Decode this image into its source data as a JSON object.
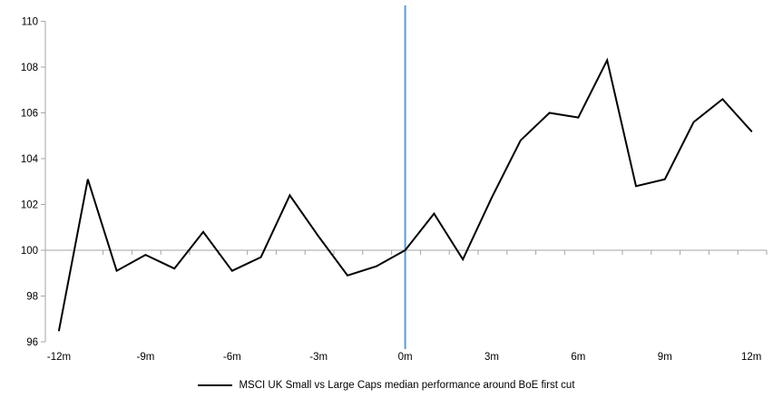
{
  "chart_data": {
    "type": "line",
    "title": "",
    "xlabel": "",
    "ylabel": "",
    "x_months": [
      -12,
      -11,
      -10,
      -9,
      -8,
      -7,
      -6,
      -5,
      -4,
      -3,
      -2,
      -1,
      0,
      1,
      2,
      3,
      4,
      5,
      6,
      7,
      8,
      9,
      10,
      11,
      12
    ],
    "series": [
      {
        "name": "MSCI UK Small vs Large Caps median performance around BoE first cut",
        "values": [
          96.5,
          103.1,
          99.1,
          99.8,
          99.2,
          100.8,
          99.1,
          99.7,
          102.4,
          100.6,
          98.9,
          99.3,
          100.0,
          101.6,
          99.6,
          102.3,
          104.8,
          106.0,
          105.8,
          108.3,
          102.8,
          103.1,
          105.6,
          106.6,
          105.2
        ]
      }
    ],
    "ylim": [
      96,
      110
    ],
    "yticks": [
      110,
      108,
      106,
      104,
      102,
      100,
      98,
      96
    ],
    "xtick_months": [
      -12,
      -9,
      -6,
      -3,
      0,
      3,
      6,
      9,
      12
    ],
    "xtick_labels": [
      "-12m",
      "-9m",
      "-6m",
      "-3m",
      "0m",
      "3m",
      "6m",
      "9m",
      "12m"
    ],
    "baseline_value": 100,
    "event_line_month": 0,
    "grid": false,
    "legend_position": "bottom",
    "colors": {
      "series_line": "#000000",
      "event_line": "#5b9bd5",
      "axis_line": "#a6a6a6",
      "text": "#000000"
    }
  },
  "legend": {
    "items": [
      {
        "label": "MSCI UK Small vs Large Caps median performance around BoE first cut",
        "color": "#000000"
      }
    ]
  }
}
